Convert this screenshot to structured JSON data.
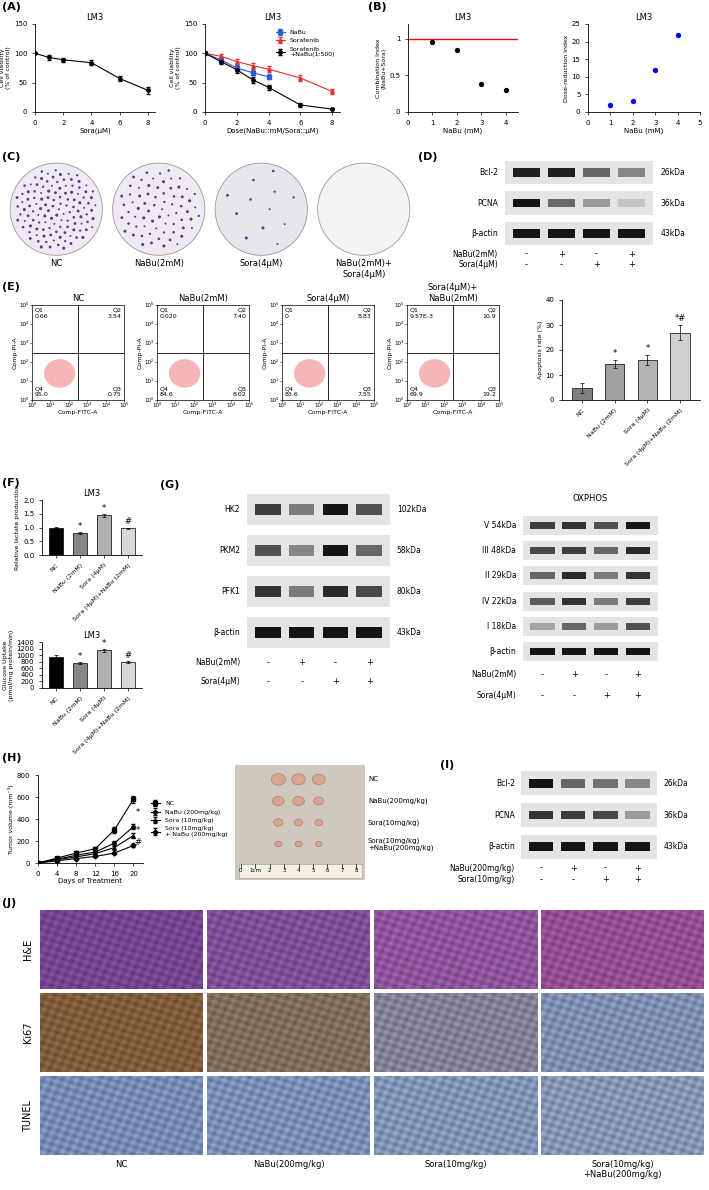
{
  "chart_data": [
    {
      "panel_label": "(A)",
      "type": "line",
      "title": "LM3",
      "x": [
        0,
        1,
        2,
        4,
        6,
        8
      ],
      "xlim": [
        0,
        8.5
      ],
      "xticks": [
        0,
        2,
        4,
        6,
        8
      ],
      "ylim": [
        0,
        150
      ],
      "yticks": [
        0,
        50,
        100,
        150
      ],
      "x_label": "Sora(μM)",
      "y_label": "Cell viability\n(% of control)",
      "series": [
        {
          "values": [
            100,
            93,
            89,
            84,
            57,
            37
          ],
          "errors": [
            0,
            4,
            3,
            4,
            5,
            6
          ],
          "color": "#000000",
          "marker": "circle"
        }
      ]
    },
    {
      "type": "line",
      "title": "LM3",
      "x": [
        0,
        1,
        2,
        3,
        4,
        6,
        8
      ],
      "xlim": [
        0,
        8.5
      ],
      "xticks": [
        0,
        2,
        4,
        6,
        8
      ],
      "ylim": [
        0,
        150
      ],
      "yticks": [
        0,
        50,
        100,
        150
      ],
      "x_label": "Dose(NaBu::mM/Sora::μM)",
      "y_label": "Cell viability\n(% of control)",
      "legend": "upper right",
      "series": [
        {
          "name": "NaBu",
          "values": [
            100,
            89,
            75,
            67,
            60,
            null,
            null
          ],
          "errors": [
            0,
            4,
            5,
            4,
            4,
            null,
            null
          ],
          "color": "#2f5bd9",
          "marker": "square"
        },
        {
          "name": "Sorafenib",
          "values": [
            100,
            95,
            86,
            79,
            73,
            58,
            35
          ],
          "errors": [
            0,
            4,
            5,
            5,
            5,
            5,
            5
          ],
          "color": "#e03131",
          "marker": "triangle"
        },
        {
          "name": "Sorafenib\n+NaBu(1:500)",
          "values": [
            100,
            86,
            72,
            55,
            42,
            12,
            5
          ],
          "errors": [
            0,
            4,
            6,
            5,
            4,
            3,
            2
          ],
          "color": "#000000",
          "marker": "circle"
        }
      ]
    },
    {
      "panel_label": "(B)",
      "type": "scatter",
      "title": "LM3",
      "x": [
        1,
        2,
        3,
        4
      ],
      "values": [
        0.95,
        0.85,
        0.38,
        0.3
      ],
      "color": "#000000",
      "reference": {
        "value": 1,
        "color": "#ff0000"
      },
      "xlim": [
        0,
        4.5
      ],
      "xticks": [
        0,
        1,
        2,
        3,
        4
      ],
      "ylim": [
        0,
        1.2
      ],
      "yticks": [
        0,
        0.5,
        1
      ],
      "x_label": "NaBu (mM)",
      "y_label": "Combination Index\n(NaBu+Sora)"
    },
    {
      "type": "scatter",
      "title": "LM3",
      "x": [
        1,
        2,
        3,
        4
      ],
      "values": [
        2,
        3,
        12,
        22
      ],
      "color": "#0000ff",
      "xlim": [
        0,
        5
      ],
      "xticks": [
        0,
        1,
        2,
        3,
        4,
        5
      ],
      "ylim": [
        0,
        25
      ],
      "yticks": [
        0,
        5,
        10,
        15,
        20,
        25
      ],
      "x_label": "NaBu (mM)",
      "y_label": "Dose-reduction index"
    },
    {
      "type": "bar",
      "categories": [
        "NC",
        "NaBu (2mM)",
        "Sora (4μM)",
        "Sora (4μM)+NaBu (2mM)"
      ],
      "values": [
        5,
        14.5,
        16,
        27
      ],
      "errors": [
        2,
        1.5,
        2,
        3
      ],
      "marks": [
        null,
        "*",
        "*",
        "*#"
      ],
      "colors": [
        "#808080",
        "#a0a0a0",
        "#b4b4b4",
        "#d0d0d0"
      ],
      "ylim": [
        0,
        40
      ],
      "yticks": [
        0,
        10,
        20,
        30,
        40
      ],
      "y_label": "Apoptosis rate (%)"
    },
    {
      "panel_label": "(F)",
      "type": "bar",
      "title": "LM3",
      "categories": [
        "NC",
        "NaBu (2mM)",
        "Sora (4μM)",
        "Sora (4μM)+NaBu (2mM)"
      ],
      "values": [
        1.0,
        0.8,
        1.45,
        0.97
      ],
      "errors": [
        0.03,
        0.03,
        0.05,
        0.03
      ],
      "marks": [
        null,
        "*",
        "*",
        "#"
      ],
      "colors": [
        "#000000",
        "#888888",
        "#b0b0b0",
        "#d8d8d8"
      ],
      "ylim": [
        0,
        2
      ],
      "yticks": [
        {
          "value": 0,
          "label": "0.0"
        },
        {
          "value": 0.5,
          "label": "0.5"
        },
        {
          "value": 1,
          "label": "1.0"
        },
        {
          "value": 1.5,
          "label": "1.5"
        },
        {
          "value": 2,
          "label": "2.0"
        }
      ],
      "y_label": "Relative lactate production"
    },
    {
      "type": "bar",
      "title": "LM3",
      "categories": [
        "NC",
        "NaBu (2mM)",
        "Sora (4μM)",
        "Sora (4μM)+NaBu (2mM)"
      ],
      "values": [
        950,
        760,
        1150,
        800
      ],
      "errors": [
        40,
        30,
        50,
        30
      ],
      "marks": [
        null,
        "*",
        "*",
        "#"
      ],
      "colors": [
        "#000000",
        "#888888",
        "#b0b0b0",
        "#d8d8d8"
      ],
      "ylim": [
        0,
        1400
      ],
      "yticks": [
        0,
        200,
        400,
        600,
        800,
        1000,
        1200,
        1400
      ],
      "y_label": "Glucose Uptake\n(pmol/mg protein/min)"
    },
    {
      "panel_label": "(H)",
      "type": "line",
      "x": [
        0,
        4,
        8,
        12,
        16,
        20
      ],
      "xlim": [
        0,
        22
      ],
      "xticks": [
        0,
        4,
        8,
        12,
        16,
        20
      ],
      "ylim": [
        0,
        800
      ],
      "yticks": [
        0,
        200,
        400,
        600,
        800
      ],
      "x_label": "Days of Treatment",
      "y_label": "Tumor volume (mm⁻³)",
      "legend": "right",
      "series": [
        {
          "name": "NC",
          "values": [
            0,
            45,
            90,
            130,
            300,
            580
          ],
          "errors": [
            0,
            10,
            15,
            20,
            30,
            30
          ],
          "color": "#000000",
          "marker": "square"
        },
        {
          "name": "NaBu (200mg/kg)",
          "values": [
            0,
            35,
            70,
            100,
            180,
            330
          ],
          "errors": [
            0,
            8,
            10,
            15,
            20,
            25
          ],
          "color": "#000000",
          "marker": "circle"
        },
        {
          "name": "Sora (10mg/kg)",
          "values": [
            0,
            30,
            55,
            85,
            140,
            250
          ],
          "errors": [
            0,
            5,
            8,
            10,
            15,
            20
          ],
          "color": "#000000",
          "marker": "triangle"
        },
        {
          "name": "Sora (10mg/kg)\n+ NaBu (200mg/kg)",
          "values": [
            0,
            20,
            40,
            60,
            90,
            160
          ],
          "errors": [
            0,
            5,
            5,
            8,
            10,
            15
          ],
          "color": "#000000",
          "marker": "diamond"
        }
      ],
      "annotations": [
        {
          "text": "*",
          "x": 21,
          "y": 460
        },
        {
          "text": "*",
          "x": 21,
          "y": 300
        },
        {
          "text": "#",
          "x": 21,
          "y": 190
        }
      ]
    }
  ],
  "colony_assay": {
    "panel_label": "(C)",
    "dishes": [
      "NC",
      "NaBu(2mM)",
      "Sora(4μM)",
      "NaBu(2mM)+\nSora(4μM)"
    ],
    "colonies": [
      120,
      70,
      12,
      0
    ],
    "colors": [
      "#efe9f3",
      "#efe9f3",
      "#e6e6ec",
      "#f4f4f4"
    ]
  },
  "flow_cytometry": {
    "panel_label": "(E)",
    "x_label": "Comp-FITC-A",
    "y_label": "Comp-PI-A",
    "xlim": [
      1,
      100000
    ],
    "ylim": [
      1,
      100000
    ],
    "gate": [
      300,
      300
    ],
    "ticks": [
      {
        "value": 1,
        "label": "10⁰"
      },
      {
        "value": 10,
        "label": "10¹"
      },
      {
        "value": 100,
        "label": "10²"
      },
      {
        "value": 1000,
        "label": "10³"
      },
      {
        "value": 10000,
        "label": "10⁴"
      },
      {
        "value": 100000,
        "label": "10⁵"
      }
    ],
    "plots": [
      {
        "title": "NC",
        "quadrants": [
          {
            "name": "Q1",
            "value": "0.66"
          },
          {
            "name": "Q2",
            "value": "3.54"
          },
          {
            "name": "Q3",
            "value": "0.75"
          },
          {
            "name": "Q4",
            "value": "95.0"
          }
        ]
      },
      {
        "title": "NaBu(2mM)",
        "quadrants": [
          {
            "name": "Q1",
            "value": "0.020"
          },
          {
            "name": "Q2",
            "value": "7.40"
          },
          {
            "name": "Q3",
            "value": "8.02"
          },
          {
            "name": "Q4",
            "value": "84.6"
          }
        ]
      },
      {
        "title": "Sora(4μM)",
        "quadrants": [
          {
            "name": "Q1",
            "value": "0"
          },
          {
            "name": "Q2",
            "value": "8.83"
          },
          {
            "name": "Q3",
            "value": "7.55"
          },
          {
            "name": "Q4",
            "value": "83.6"
          }
        ]
      },
      {
        "title": "Sora(4μM)+\nNaBu(2mM)",
        "quadrants": [
          {
            "name": "Q1",
            "value": "9.57E-3"
          },
          {
            "name": "Q2",
            "value": "10.9"
          },
          {
            "name": "Q3",
            "value": "19.2"
          },
          {
            "name": "Q4",
            "value": "69.9"
          }
        ]
      }
    ]
  },
  "blots": [
    {
      "panel_label": "(D)",
      "rows": [
        {
          "left": "Bcl-2",
          "right": "26kDa",
          "intensity": [
            0.95,
            0.95,
            0.6,
            0.45
          ]
        },
        {
          "left": "PCNA",
          "right": "36kDa",
          "intensity": [
            1,
            0.6,
            0.35,
            0.15
          ]
        },
        {
          "left": "β-actin",
          "right": "43kDa",
          "intensity": [
            1,
            1,
            1,
            1
          ]
        }
      ],
      "treatments": [
        {
          "name": "NaBu(2mM)",
          "signs": [
            "-",
            "+",
            "-",
            "+"
          ]
        },
        {
          "name": "Sora(4μM)",
          "signs": [
            "-",
            "-",
            "+",
            "+"
          ]
        }
      ]
    },
    {
      "panel_label": "(G)",
      "rows": [
        {
          "left": "HK2",
          "right": "102kDa",
          "intensity": [
            0.8,
            0.5,
            1,
            0.7
          ]
        },
        {
          "left": "PKM2",
          "right": "58kDa",
          "intensity": [
            0.7,
            0.45,
            1,
            0.6
          ]
        },
        {
          "left": "PFK1",
          "right": "80kDa",
          "intensity": [
            0.85,
            0.5,
            0.9,
            0.75
          ]
        },
        {
          "left": "β-actin",
          "right": "43kDa",
          "intensity": [
            1,
            1,
            1,
            1
          ]
        }
      ],
      "treatments": [
        {
          "name": "NaBu(2mM)",
          "signs": [
            "-",
            "+",
            "-",
            "+"
          ]
        },
        {
          "name": "Sora(4μM)",
          "signs": [
            "-",
            "-",
            "+",
            "+"
          ]
        }
      ]
    },
    {
      "header": "OXPHOS",
      "rows": [
        {
          "left": "V 54kDa",
          "intensity": [
            0.8,
            0.85,
            0.7,
            1
          ]
        },
        {
          "left": "III 48kDa",
          "intensity": [
            0.75,
            0.8,
            0.6,
            0.9
          ]
        },
        {
          "left": "II 29kDa",
          "intensity": [
            0.6,
            0.9,
            0.5,
            0.85
          ]
        },
        {
          "left": "IV 22kDa",
          "intensity": [
            0.65,
            0.85,
            0.5,
            0.8
          ]
        },
        {
          "left": "I 18kDa",
          "intensity": [
            0.3,
            0.6,
            0.35,
            0.7
          ]
        },
        {
          "left": "β-actin",
          "intensity": [
            1,
            1,
            1,
            1
          ]
        }
      ],
      "treatments": [
        {
          "name": "NaBu(2mM)",
          "signs": [
            "-",
            "+",
            "-",
            "+"
          ]
        },
        {
          "name": "Sora(4μM)",
          "signs": [
            "-",
            "-",
            "+",
            "+"
          ]
        }
      ]
    },
    {
      "panel_label": "(I)",
      "rows": [
        {
          "left": "Bcl-2",
          "right": "26kDa",
          "intensity": [
            1,
            0.6,
            0.55,
            0.45
          ]
        },
        {
          "left": "PCNA",
          "right": "36kDa",
          "intensity": [
            0.85,
            0.8,
            0.75,
            0.35
          ]
        },
        {
          "left": "β-actin",
          "right": "43kDa",
          "intensity": [
            1,
            1,
            1,
            1
          ]
        }
      ],
      "treatments": [
        {
          "name": "NaBu(200mg/kg)",
          "signs": [
            "-",
            "+",
            "-",
            "+"
          ]
        },
        {
          "name": "Sora(10mg/kg)",
          "signs": [
            "-",
            "-",
            "+",
            "+"
          ]
        }
      ]
    }
  ],
  "tumor_photo": {
    "rows": [
      {
        "label": "NC",
        "sizes": [
          1.0,
          0.95,
          0.9
        ]
      },
      {
        "label": "NaBu(200mg/kg)",
        "sizes": [
          0.8,
          0.8,
          0.7
        ]
      },
      {
        "label": "Sora(10mg/kg)",
        "sizes": [
          0.65,
          0.6,
          0.55
        ]
      },
      {
        "label": "Sora(10mg/kg)\n+NaBu(200mg/kg)",
        "sizes": [
          0.5,
          0.5,
          0.45
        ]
      }
    ],
    "ruler": [
      0,
      {
        "value": 1,
        "label": "1cm"
      },
      2,
      3,
      4,
      5,
      6,
      7,
      8
    ]
  },
  "histology": {
    "panel_label": "(J)",
    "rows": [
      "H&E",
      "Ki67",
      "TUNEL"
    ],
    "columns": [
      "NC",
      "NaBu(200mg/kg)",
      "Sora(10mg/kg)",
      "Sora(10mg/kg)\n+NaBu(200mg/kg)"
    ],
    "colors": [
      [
        "#7d4a9a",
        "#8a55a3",
        "#9a5aa8",
        "#a0549e"
      ],
      [
        "#8a6540",
        "#8a7560",
        "#8f8aa0",
        "#8a9ac0"
      ],
      [
        "#7f96c2",
        "#849bc4",
        "#8aa0c6",
        "#8fa2c4"
      ]
    ]
  }
}
